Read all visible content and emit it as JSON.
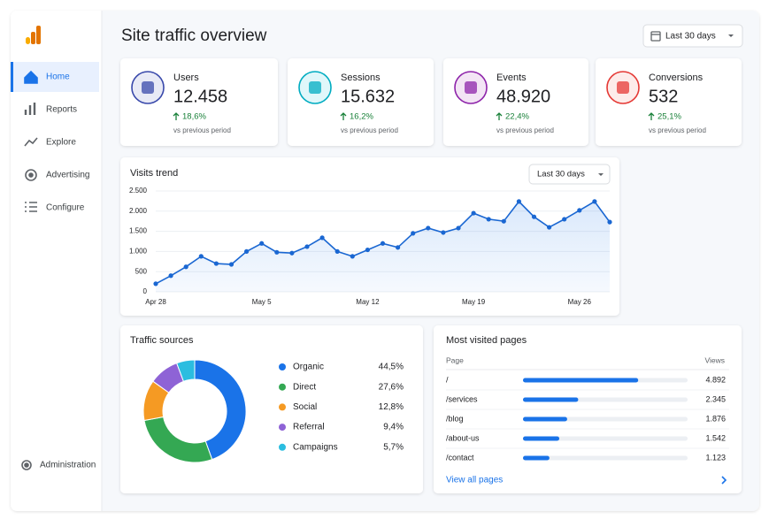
{
  "nav": {
    "items": [
      "Home",
      "Reports",
      "Explore",
      "Advertising",
      "Configure"
    ],
    "admin": "Administration"
  },
  "header": {
    "title": "Site traffic overview",
    "range": "Last 30 days"
  },
  "kpis": [
    {
      "label": "Users",
      "value": "12.458",
      "change": "18,6%",
      "note": "vs previous period"
    },
    {
      "label": "Sessions",
      "value": "15.632",
      "change": "16,2%",
      "note": "vs previous period"
    },
    {
      "label": "Events",
      "value": "48.920",
      "change": "22,4%",
      "note": "vs previous period"
    },
    {
      "label": "Conversions",
      "value": "532",
      "change": "25,1%",
      "note": "vs previous period"
    }
  ],
  "trend": {
    "type": "line",
    "title": "Visits trend",
    "range": "Last 30 days",
    "categories": [
      "Apr 28",
      null,
      null,
      null,
      null,
      null,
      null,
      "May 5",
      null,
      null,
      null,
      null,
      null,
      null,
      "May 12",
      null,
      null,
      null,
      null,
      null,
      null,
      "May 19",
      null,
      null,
      null,
      null,
      null,
      null,
      "May 26",
      null,
      null
    ],
    "values": [
      200,
      400,
      620,
      880,
      700,
      680,
      1000,
      1200,
      980,
      960,
      1120,
      1340,
      1000,
      880,
      1040,
      1200,
      1100,
      1450,
      1580,
      1470,
      1580,
      1950,
      1800,
      1750,
      2240,
      1860,
      1600,
      1800,
      2020,
      2240,
      1730
    ],
    "color": "#1a67d2",
    "ylim": [
      0,
      2500
    ],
    "yticks": [
      0,
      500,
      {
        "value": 1000,
        "label": "1.000"
      },
      {
        "value": 1500,
        "label": "1.500"
      },
      {
        "value": 2000,
        "label": "2.000"
      },
      {
        "value": 2500,
        "label": "2.500"
      }
    ],
    "grid": true
  },
  "sources": {
    "type": "pie",
    "title": "Traffic sources",
    "categories": [
      "Organic",
      "Direct",
      "Social",
      "Referral",
      "Campaigns"
    ],
    "values": [
      44.5,
      27.6,
      12.8,
      9.4,
      5.7
    ],
    "value_labels": [
      "44,5%",
      "27,6%",
      "12,8%",
      "9,4%",
      "5,7%"
    ],
    "colors": [
      "#1a73e8",
      "#34a853",
      "#f59a23",
      "#8e63d6",
      "#2bbde0"
    ]
  },
  "pages": {
    "type": "bar",
    "title": "Most visited pages",
    "col_page": "Page",
    "col_views": "Views",
    "categories": [
      "/",
      "/services",
      "/blog",
      "/about-us",
      "/contact"
    ],
    "values": [
      4892,
      2345,
      1876,
      1542,
      1123
    ],
    "value_labels": [
      "4.892",
      "2.345",
      "1.876",
      "1.542",
      "1.123"
    ],
    "color": "#1a73e8",
    "link": "View all pages"
  }
}
